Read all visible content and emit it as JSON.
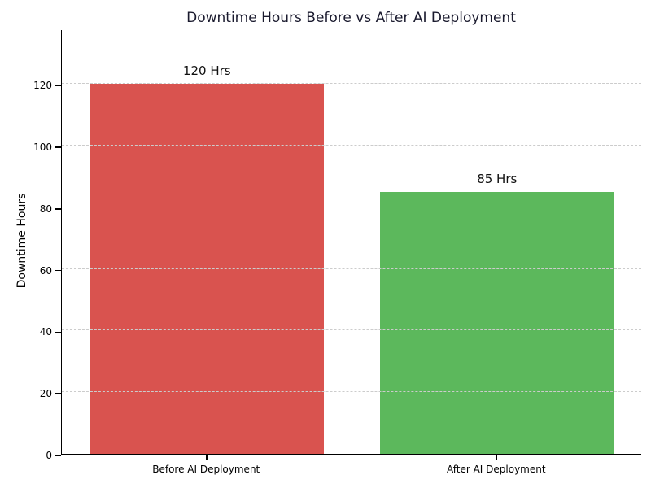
{
  "figure": {
    "background": "#ffffff"
  },
  "chart_data": {
    "type": "bar",
    "title": "Downtime Hours Before vs After AI Deployment",
    "title_color": "#1a1a2e",
    "xlabel": "",
    "ylabel": "Downtime Hours",
    "categories": [
      "Before AI Deployment",
      "After AI Deployment"
    ],
    "values": [
      120,
      85
    ],
    "value_labels": [
      "120 Hrs",
      "85 Hrs"
    ],
    "bar_colors": [
      "#d9534f",
      "#5cb85c"
    ],
    "yticks": [
      0,
      20,
      40,
      60,
      80,
      100,
      120
    ],
    "ylim": [
      0,
      138
    ],
    "grid": true,
    "grid_style": "dashed",
    "grid_color": "#cccccc",
    "axis_color": "#000000",
    "legend_position": "none"
  }
}
